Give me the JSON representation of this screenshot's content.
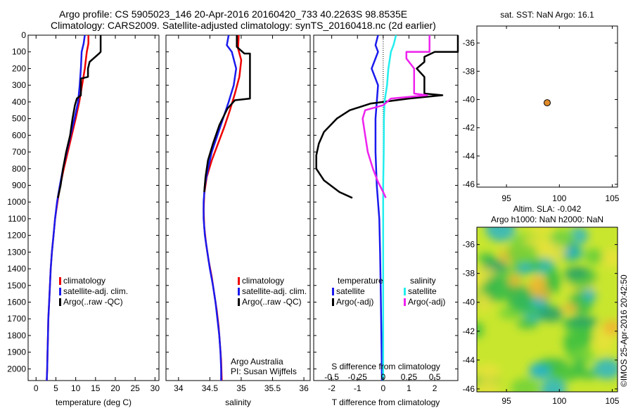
{
  "header": {
    "line1": "Argo profile: CS 5905023_146 20-Apr-2016 20160420_733 40.2263S 98.8535E",
    "line2": "Climatology: CARS2009. Satellite-adjusted climatology: synTS_20160418.nc (2d earlier)"
  },
  "colors": {
    "climatology": "#ee0000",
    "satellite": "#1a1aee",
    "argo": "#000000",
    "sal_sat": "#22eeee",
    "sal_argo": "#ee22ee",
    "marker": "#e08b2a"
  },
  "chart_data": [
    {
      "type": "line",
      "id": "temperature",
      "xlabel": "temperature (deg C)",
      "xlim": [
        -2,
        31
      ],
      "xticks": [
        0,
        5,
        10,
        15,
        20,
        25,
        30
      ],
      "ylim": [
        2070,
        0
      ],
      "yticks": [
        0,
        100,
        200,
        300,
        400,
        500,
        600,
        700,
        800,
        900,
        1000,
        1100,
        1200,
        1300,
        1400,
        1500,
        1600,
        1700,
        1800,
        1900,
        2000
      ],
      "legend": [
        "climatology",
        "satellite-adj. clim.",
        "Argo(..raw -QC)"
      ],
      "series": [
        {
          "name": "climatology",
          "color_key": "climatology",
          "points": [
            [
              13.2,
              0
            ],
            [
              13.2,
              50
            ],
            [
              12.8,
              100
            ],
            [
              12.3,
              200
            ],
            [
              11.6,
              300
            ],
            [
              10.9,
              400
            ],
            [
              10.0,
              500
            ],
            [
              9.0,
              600
            ],
            [
              8.0,
              700
            ],
            [
              7.0,
              800
            ],
            [
              6.1,
              900
            ],
            [
              5.4,
              1000
            ],
            [
              4.8,
              1100
            ],
            [
              4.4,
              1200
            ],
            [
              4.0,
              1300
            ],
            [
              3.7,
              1400
            ],
            [
              3.5,
              1500
            ],
            [
              3.3,
              1600
            ],
            [
              3.1,
              1700
            ],
            [
              3.0,
              1800
            ],
            [
              2.9,
              1900
            ],
            [
              2.8,
              2000
            ],
            [
              2.7,
              2070
            ]
          ]
        },
        {
          "name": "satellite-adj. clim.",
          "color_key": "satellite",
          "points": [
            [
              12.3,
              0
            ],
            [
              12.0,
              50
            ],
            [
              11.5,
              100
            ],
            [
              11.3,
              200
            ],
            [
              11.0,
              300
            ],
            [
              10.6,
              400
            ],
            [
              9.7,
              500
            ],
            [
              8.7,
              600
            ],
            [
              7.7,
              700
            ],
            [
              6.8,
              800
            ],
            [
              6.0,
              900
            ],
            [
              5.3,
              1000
            ],
            [
              4.8,
              1100
            ],
            [
              4.4,
              1200
            ],
            [
              4.0,
              1300
            ],
            [
              3.7,
              1400
            ],
            [
              3.5,
              1500
            ],
            [
              3.3,
              1600
            ],
            [
              3.1,
              1700
            ],
            [
              3.0,
              1800
            ],
            [
              2.9,
              1900
            ],
            [
              2.8,
              2000
            ],
            [
              2.7,
              2070
            ]
          ]
        },
        {
          "name": "Argo(..raw -QC)",
          "color_key": "argo",
          "points": [
            [
              16.3,
              0
            ],
            [
              16.3,
              100
            ],
            [
              15.9,
              110
            ],
            [
              13.5,
              160
            ],
            [
              13.1,
              200
            ],
            [
              13.1,
              250
            ],
            [
              11.3,
              260
            ],
            [
              11.3,
              300
            ],
            [
              11.3,
              360
            ],
            [
              10.3,
              380
            ],
            [
              9.8,
              420
            ],
            [
              9.2,
              500
            ],
            [
              8.6,
              600
            ],
            [
              7.6,
              700
            ],
            [
              6.8,
              800
            ],
            [
              6.2,
              900
            ],
            [
              5.5,
              975
            ]
          ]
        }
      ]
    },
    {
      "type": "line",
      "id": "salinity",
      "xlabel": "salinity",
      "xlim": [
        33.8,
        36.1
      ],
      "xticks": [
        34,
        34.5,
        35,
        35.5,
        36
      ],
      "ylim": [
        2070,
        0
      ],
      "legend": [
        "climatology",
        "satellite-adj. clim.",
        "Argo(..raw -QC)"
      ],
      "annotation": [
        "Argo Australia",
        "PI: Susan Wijffels"
      ],
      "series": [
        {
          "name": "climatology",
          "color_key": "climatology",
          "points": [
            [
              34.96,
              0
            ],
            [
              34.95,
              80
            ],
            [
              35.0,
              150
            ],
            [
              34.97,
              250
            ],
            [
              34.9,
              350
            ],
            [
              34.82,
              450
            ],
            [
              34.73,
              550
            ],
            [
              34.63,
              650
            ],
            [
              34.53,
              750
            ],
            [
              34.45,
              850
            ],
            [
              34.41,
              950
            ],
            [
              34.4,
              1050
            ],
            [
              34.41,
              1150
            ],
            [
              34.44,
              1250
            ],
            [
              34.48,
              1350
            ],
            [
              34.53,
              1450
            ],
            [
              34.57,
              1550
            ],
            [
              34.61,
              1650
            ],
            [
              34.64,
              1750
            ],
            [
              34.66,
              1850
            ],
            [
              34.68,
              1950
            ],
            [
              34.69,
              2070
            ]
          ]
        },
        {
          "name": "satellite-adj. clim.",
          "color_key": "satellite",
          "points": [
            [
              34.8,
              0
            ],
            [
              34.77,
              60
            ],
            [
              34.85,
              100
            ],
            [
              34.92,
              200
            ],
            [
              34.88,
              300
            ],
            [
              34.8,
              400
            ],
            [
              34.71,
              500
            ],
            [
              34.62,
              600
            ],
            [
              34.53,
              700
            ],
            [
              34.47,
              800
            ],
            [
              34.42,
              900
            ],
            [
              34.4,
              1000
            ],
            [
              34.4,
              1100
            ],
            [
              34.42,
              1200
            ],
            [
              34.46,
              1300
            ],
            [
              34.5,
              1400
            ],
            [
              34.55,
              1500
            ],
            [
              34.59,
              1600
            ],
            [
              34.62,
              1700
            ],
            [
              34.65,
              1800
            ],
            [
              34.67,
              1900
            ],
            [
              34.68,
              2000
            ],
            [
              34.68,
              2070
            ]
          ]
        },
        {
          "name": "Argo(..raw -QC)",
          "color_key": "argo",
          "points": [
            [
              34.93,
              0
            ],
            [
              34.93,
              70
            ],
            [
              35.05,
              110
            ],
            [
              35.14,
              110
            ],
            [
              35.14,
              380
            ],
            [
              34.9,
              390
            ],
            [
              34.78,
              440
            ],
            [
              34.65,
              540
            ],
            [
              34.55,
              650
            ],
            [
              34.47,
              750
            ],
            [
              34.43,
              850
            ],
            [
              34.41,
              940
            ]
          ]
        }
      ]
    },
    {
      "type": "line",
      "id": "difference",
      "xlabel": "T difference from climatology",
      "xlabel_top": "S difference from climatology",
      "xlim": [
        -2.7,
        2.9
      ],
      "xticks": [
        -2,
        -1,
        0,
        1,
        2
      ],
      "top_xtick_labels": [
        "-0.5",
        "-0.25",
        "0",
        "0.25",
        "0.5"
      ],
      "top_xtick_values": [
        -2,
        -1,
        0,
        1,
        2
      ],
      "ylim": [
        2070,
        0
      ],
      "legend_headers": [
        "temperature",
        "salinity"
      ],
      "legend": [
        "satellite",
        "Argo(-adj)",
        "satellite",
        "Argo(-adj)"
      ],
      "series": [
        {
          "name": "temperature satellite",
          "color_key": "satellite",
          "points": [
            [
              -0.2,
              0
            ],
            [
              -0.3,
              60
            ],
            [
              -0.2,
              100
            ],
            [
              -0.45,
              200
            ],
            [
              -0.2,
              300
            ],
            [
              -0.25,
              400
            ],
            [
              -0.3,
              500
            ],
            [
              -0.3,
              700
            ],
            [
              -0.25,
              900
            ],
            [
              -0.15,
              1100
            ],
            [
              -0.12,
              1300
            ],
            [
              -0.1,
              1500
            ],
            [
              -0.08,
              1700
            ],
            [
              -0.06,
              1900
            ],
            [
              -0.05,
              2070
            ]
          ]
        },
        {
          "name": "temperature Argo(-adj)",
          "color_key": "argo",
          "points": [
            [
              2.9,
              0
            ],
            [
              2.9,
              100
            ],
            [
              2.0,
              100
            ],
            [
              1.6,
              130
            ],
            [
              1.6,
              160
            ],
            [
              1.3,
              200
            ],
            [
              1.6,
              250
            ],
            [
              1.6,
              350
            ],
            [
              2.3,
              360
            ],
            [
              1.0,
              380
            ],
            [
              -0.5,
              410
            ],
            [
              -1.3,
              450
            ],
            [
              -1.8,
              500
            ],
            [
              -2.3,
              580
            ],
            [
              -2.5,
              650
            ],
            [
              -2.6,
              720
            ],
            [
              -2.6,
              800
            ],
            [
              -2.3,
              870
            ],
            [
              -1.7,
              940
            ],
            [
              -1.2,
              975
            ]
          ]
        },
        {
          "name": "salinity satellite",
          "color_key": "sal_sat",
          "points": [
            [
              0.5,
              0
            ],
            [
              0.4,
              60
            ],
            [
              0.3,
              100
            ],
            [
              0.2,
              200
            ],
            [
              0.15,
              300
            ],
            [
              0.05,
              400
            ],
            [
              0.03,
              500
            ],
            [
              0.02,
              700
            ],
            [
              0.0,
              900
            ],
            [
              0.0,
              1100
            ],
            [
              0.0,
              1300
            ],
            [
              0.0,
              1500
            ],
            [
              0.0,
              1700
            ],
            [
              0.0,
              1900
            ],
            [
              0.0,
              2070
            ]
          ]
        },
        {
          "name": "salinity Argo(-adj)",
          "color_key": "sal_argo",
          "points": [
            [
              1.8,
              0
            ],
            [
              1.8,
              100
            ],
            [
              0.9,
              100
            ],
            [
              0.9,
              140
            ],
            [
              1.2,
              200
            ],
            [
              1.2,
              350
            ],
            [
              1.7,
              360
            ],
            [
              0.3,
              380
            ],
            [
              0.0,
              420
            ],
            [
              -0.7,
              450
            ],
            [
              -0.8,
              500
            ],
            [
              -0.7,
              600
            ],
            [
              -0.6,
              700
            ],
            [
              -0.4,
              800
            ],
            [
              -0.2,
              880
            ],
            [
              0.0,
              940
            ],
            [
              0.1,
              975
            ]
          ]
        }
      ]
    },
    {
      "type": "scatter",
      "id": "location",
      "title": "sat. SST: NaN Argo: 16.1",
      "xlim": [
        92.2,
        105.5
      ],
      "xticks": [
        95,
        100,
        105
      ],
      "ylim": [
        -46.2,
        -34.8
      ],
      "yticks": [
        -36,
        -38,
        -40,
        -42,
        -44,
        -46
      ],
      "points": [
        [
          98.85,
          -40.23
        ]
      ]
    },
    {
      "type": "heatmap",
      "id": "altimetry",
      "title_line1": "Altim. SLA: -0.042",
      "title_line2": "Argo h1000: NaN h2000: NaN",
      "xlim": [
        92.2,
        105.5
      ],
      "xticks": [
        95,
        100,
        105
      ],
      "ylim": [
        -46.2,
        -34.8
      ],
      "yticks": [
        -36,
        -38,
        -40,
        -42,
        -44,
        -46
      ],
      "side_label": "©IMOS 25-Apr-2016 20:42:50"
    }
  ]
}
